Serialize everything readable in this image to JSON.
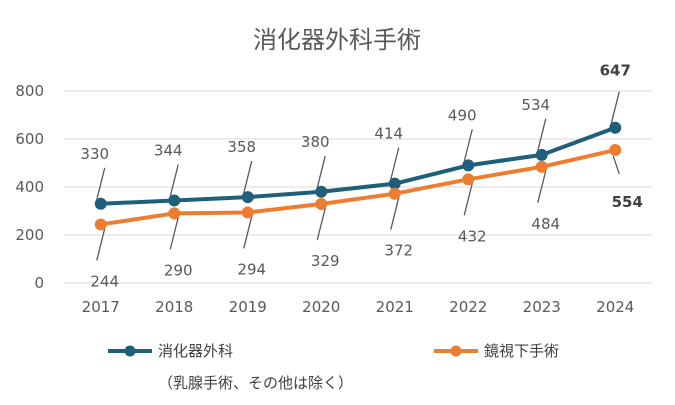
{
  "chart_data": {
    "type": "line",
    "title": "消化器外科手術",
    "categories": [
      "2017",
      "2018",
      "2019",
      "2020",
      "2021",
      "2022",
      "2023",
      "2024"
    ],
    "ylim": [
      0,
      800
    ],
    "yticks": [
      0,
      200,
      400,
      600,
      800
    ],
    "grid": true,
    "legend_position": "bottom",
    "series": [
      {
        "name": "消化器外科",
        "name_note": "（乳腺手術、その他は除く）",
        "color": "#1f5f7a",
        "values": [
          330,
          344,
          358,
          380,
          414,
          490,
          534,
          647
        ],
        "bold_last_label": true
      },
      {
        "name": "鏡視下手術",
        "color": "#ed7d31",
        "values": [
          244,
          290,
          294,
          329,
          372,
          432,
          484,
          554
        ],
        "bold_last_label": true
      }
    ]
  }
}
